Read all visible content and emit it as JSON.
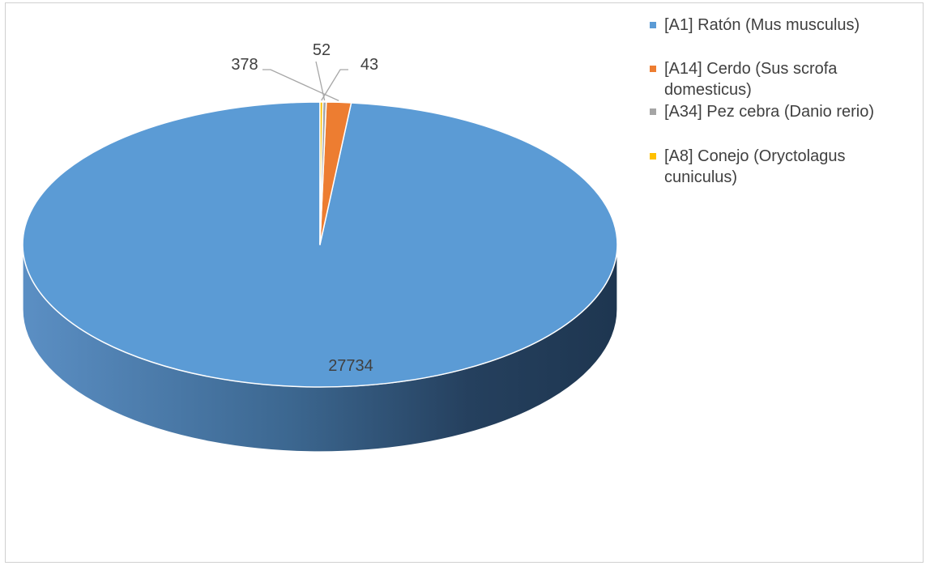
{
  "chart_data": {
    "type": "pie",
    "style": "3d",
    "title": "",
    "legend_position": "right",
    "series": [
      {
        "labels": [
          "[A1] Ratón (Mus musculus)",
          "[A14] Cerdo (Sus scrofa domesticus)",
          "[A34] Pez cebra (Danio rerio)",
          "[A8] Conejo (Oryctolagus cuniculus)"
        ],
        "values": [
          27734,
          378,
          52,
          43
        ],
        "data_labels": [
          "27734",
          "378",
          "52",
          "43"
        ],
        "colors": [
          "#5b9bd5",
          "#ed7d31",
          "#a5a5a5",
          "#ffc000"
        ]
      }
    ]
  }
}
